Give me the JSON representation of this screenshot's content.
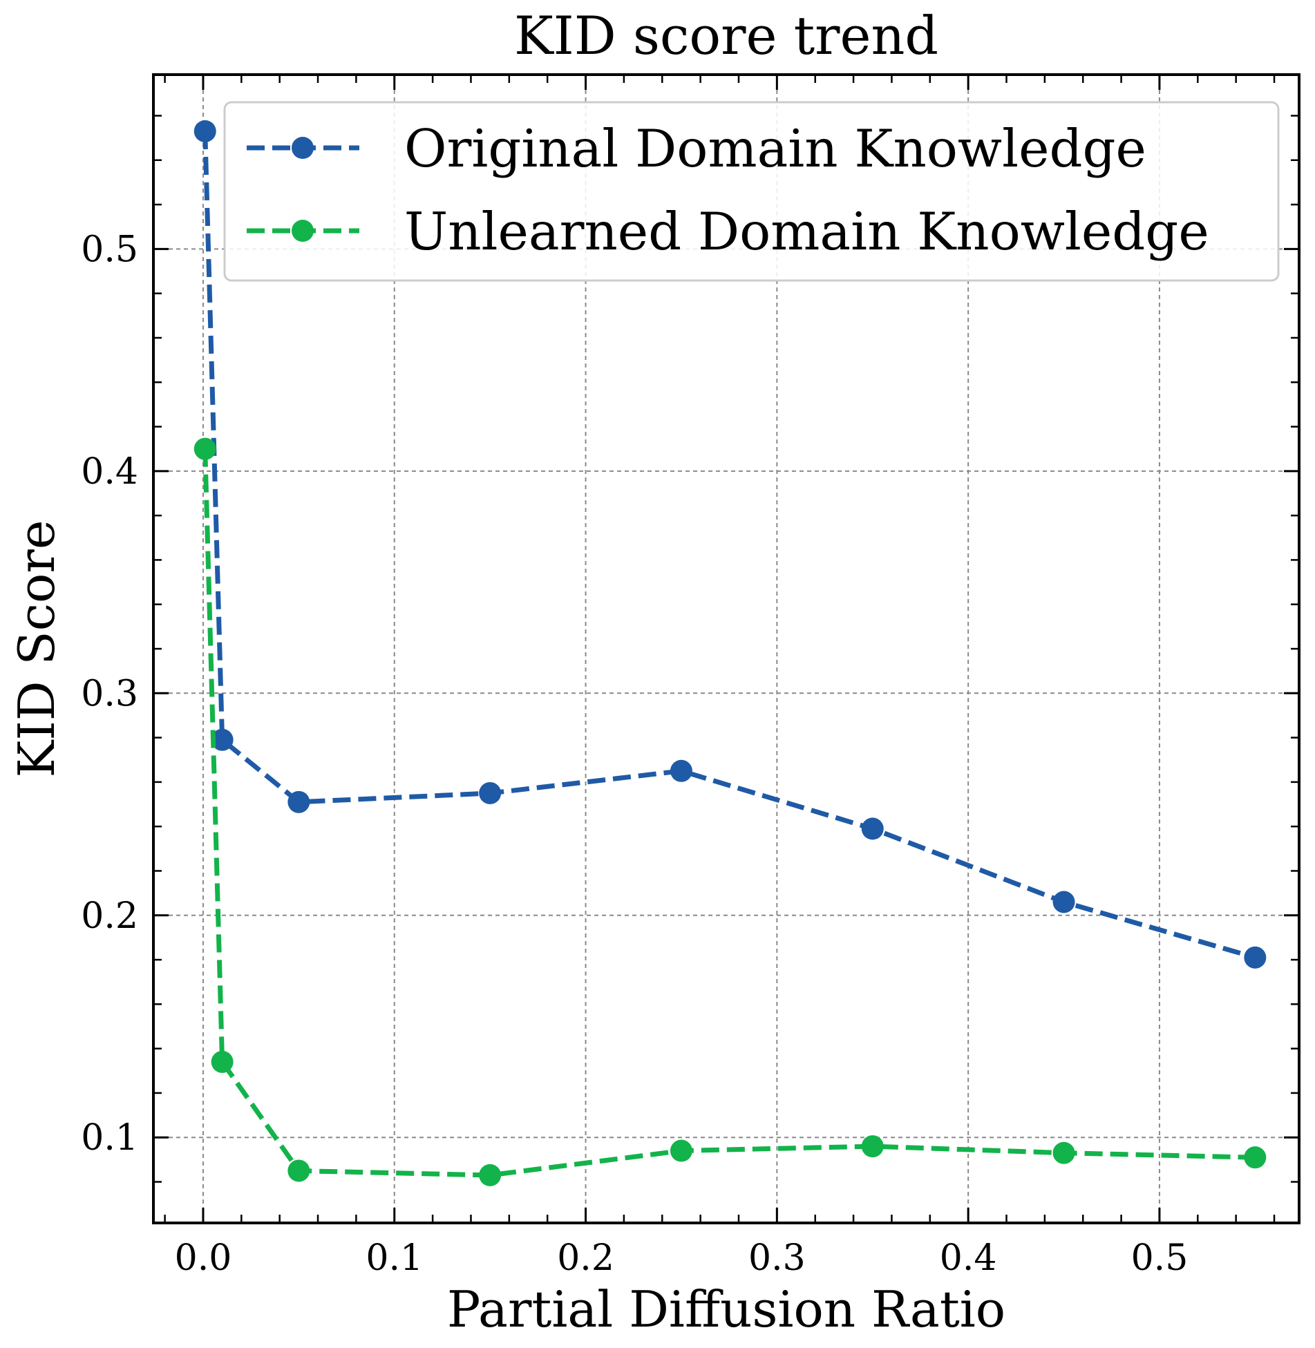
{
  "chart_data": {
    "type": "line",
    "title": "KID score trend",
    "xlabel": "Partial Diffusion Ratio",
    "ylabel": "KID Score",
    "xlim": [
      -0.026,
      0.573
    ],
    "ylim": [
      0.0615,
      0.5785
    ],
    "x_ticks": [
      0.0,
      0.1,
      0.2,
      0.3,
      0.4,
      0.5
    ],
    "x_tick_labels": [
      "0.0",
      "0.1",
      "0.2",
      "0.3",
      "0.4",
      "0.5"
    ],
    "y_ticks": [
      0.1,
      0.2,
      0.3,
      0.4,
      0.5
    ],
    "y_tick_labels": [
      "0.1",
      "0.2",
      "0.3",
      "0.4",
      "0.5"
    ],
    "grid": true,
    "legend_position": "top-right",
    "series": [
      {
        "name": "Original Domain Knowledge",
        "color": "#1f5aa6",
        "line_style": "dashed",
        "marker": "circle",
        "x": [
          0.001,
          0.01,
          0.05,
          0.15,
          0.25,
          0.35,
          0.45,
          0.55
        ],
        "y": [
          0.553,
          0.279,
          0.251,
          0.255,
          0.265,
          0.239,
          0.206,
          0.181
        ]
      },
      {
        "name": "Unlearned Domain Knowledge",
        "color": "#12b34a",
        "line_style": "dashed",
        "marker": "circle",
        "x": [
          0.001,
          0.01,
          0.05,
          0.15,
          0.25,
          0.35,
          0.45,
          0.55
        ],
        "y": [
          0.41,
          0.134,
          0.085,
          0.083,
          0.094,
          0.096,
          0.093,
          0.091
        ]
      }
    ]
  }
}
